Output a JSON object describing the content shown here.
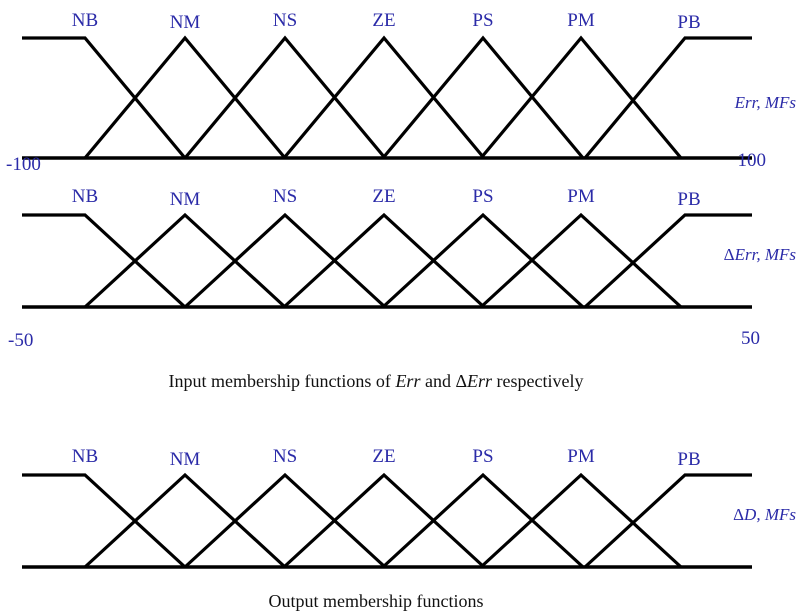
{
  "colors": {
    "label": "#2b2ba8",
    "line": "#000000",
    "caption": "#111111"
  },
  "diagram": {
    "panels": [
      {
        "id": "err",
        "side_label": "Err, MFs",
        "labels": [
          "NB",
          "NM",
          "NS",
          "ZE",
          "PS",
          "PM",
          "PB"
        ],
        "range_min": "-100",
        "range_max": "100"
      },
      {
        "id": "derr",
        "side_label_delta": "Δ",
        "side_label": "Err, MFs",
        "labels": [
          "NB",
          "NM",
          "NS",
          "ZE",
          "PS",
          "PM",
          "PB"
        ],
        "range_min": "-50",
        "range_max": "50"
      },
      {
        "id": "dd",
        "side_label_delta": "Δ",
        "side_label": "D, MFs",
        "labels": [
          "NB",
          "NM",
          "NS",
          "ZE",
          "PS",
          "PM",
          "PB"
        ]
      }
    ],
    "caption_input": {
      "part1": "Input membership functions of ",
      "var1": "Err",
      "part2": " and ",
      "delta": "Δ",
      "var2": "Err",
      "part3": " respectively"
    },
    "caption_output": "Output membership functions"
  }
}
